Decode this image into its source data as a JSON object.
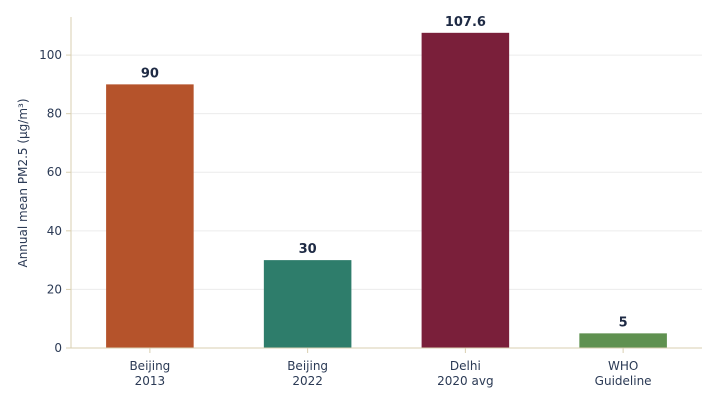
{
  "chart_data": {
    "type": "bar",
    "categories": [
      [
        "Beijing",
        "2013"
      ],
      [
        "Beijing",
        "2022"
      ],
      [
        "Delhi",
        "2020 avg"
      ],
      [
        "WHO",
        "Guideline"
      ]
    ],
    "values": [
      90,
      30,
      107.6,
      5
    ],
    "value_labels": [
      "90",
      "30",
      "107.6",
      "5"
    ],
    "colors": [
      "#b5532b",
      "#2e7d6b",
      "#7a1f3a",
      "#5f9150"
    ],
    "ylabel": "Annual mean PM2.5 (µg/m³)",
    "ylim": [
      0,
      113
    ],
    "yticks": [
      0,
      20,
      40,
      60,
      80,
      100
    ],
    "grid": true
  }
}
